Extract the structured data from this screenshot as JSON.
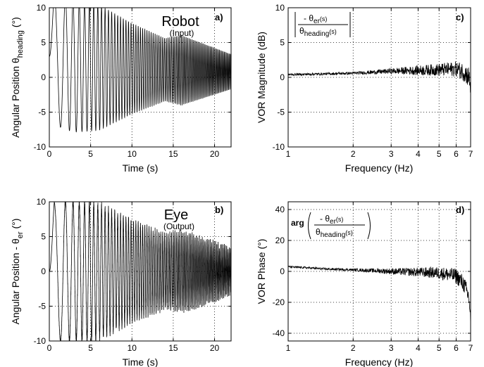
{
  "chart_data": [
    {
      "panel": "a)",
      "type": "line",
      "title": "Robot",
      "subtitle": "(Input)",
      "xlabel": "Time (s)",
      "ylabel_main": "Angular Position θ",
      "ylabel_sub": "heading",
      "ylabel_unit": "(°)",
      "xlim": [
        0,
        22
      ],
      "ylim": [
        -10,
        10
      ],
      "xticks": [
        "0",
        "5",
        "10",
        "15",
        "20"
      ],
      "yticks": [
        "-10",
        "-5",
        "0",
        "5",
        "10"
      ],
      "grid": true,
      "signal": {
        "kind": "chirp",
        "f_start_hz": 0.35,
        "f_end_hz": 7,
        "envelope": [
          [
            0,
            0
          ],
          [
            0.6,
            9.5
          ],
          [
            2,
            9.5
          ],
          [
            6,
            9
          ],
          [
            10,
            6.5
          ],
          [
            14,
            4.5
          ],
          [
            16,
            5
          ],
          [
            22,
            2.5
          ]
        ],
        "offset": 1,
        "offset_decay": [
          [
            0,
            3
          ],
          [
            3,
            1.5
          ],
          [
            22,
            0.8
          ]
        ]
      }
    },
    {
      "panel": "b)",
      "type": "line",
      "title": "Eye",
      "subtitle": "(Output)",
      "xlabel": "Time (s)",
      "ylabel_main": "Angular Position  - θ",
      "ylabel_sub": "er",
      "ylabel_unit": "(°)",
      "xlim": [
        0,
        22
      ],
      "ylim": [
        -10,
        10
      ],
      "xticks": [
        "0",
        "5",
        "10",
        "15",
        "20"
      ],
      "yticks": [
        "-10",
        "-5",
        "0",
        "5",
        "10"
      ],
      "grid": true,
      "signal": {
        "kind": "chirp",
        "f_start_hz": 0.35,
        "f_end_hz": 7,
        "envelope": [
          [
            0,
            0
          ],
          [
            0.6,
            10
          ],
          [
            2,
            10
          ],
          [
            6,
            9.5
          ],
          [
            10,
            7
          ],
          [
            14,
            5
          ],
          [
            16,
            5.5
          ],
          [
            22,
            3
          ]
        ],
        "offset": 0,
        "noise": 0.7
      }
    },
    {
      "panel": "c)",
      "type": "line",
      "ylabel": "VOR Magnitude (dB)",
      "xlabel": "Frequency (Hz)",
      "xscale": "log",
      "xlim": [
        1,
        7
      ],
      "ylim": [
        -10,
        10
      ],
      "xticks": [
        "1",
        "2",
        "3",
        "4",
        "5",
        "6",
        "7"
      ],
      "yticks": [
        "-10",
        "-5",
        "0",
        "5",
        "10"
      ],
      "grid": true,
      "annotation": "| - θer(s) / θheading(s) |",
      "annotation_parts": {
        "num": "- θ",
        "num_sub": "er",
        "num_s": "(s)",
        "den": "θ",
        "den_sub": "heading",
        "den_s": "(s)"
      },
      "trend": [
        [
          1,
          0.4
        ],
        [
          1.5,
          0.5
        ],
        [
          2,
          0.6
        ],
        [
          3,
          0.9
        ],
        [
          4,
          1
        ],
        [
          5,
          1.1
        ],
        [
          6,
          1.2
        ],
        [
          6.5,
          0.8
        ],
        [
          7,
          -0.2
        ]
      ],
      "noise_amp": [
        [
          1,
          0.15
        ],
        [
          2,
          0.2
        ],
        [
          3,
          0.4
        ],
        [
          4,
          0.7
        ],
        [
          5,
          0.9
        ],
        [
          6,
          1.1
        ],
        [
          7,
          1.6
        ]
      ],
      "end_dip": -1.5
    },
    {
      "panel": "d)",
      "type": "line",
      "ylabel": "VOR Phase (°)",
      "xlabel": "Frequency (Hz)",
      "xscale": "log",
      "xlim": [
        1,
        7
      ],
      "ylim": [
        -45,
        45
      ],
      "xticks": [
        "1",
        "2",
        "3",
        "4",
        "5",
        "6",
        "7"
      ],
      "yticks": [
        "-40",
        "-20",
        "0",
        "20",
        "40"
      ],
      "grid": true,
      "annotation_prefix": "arg",
      "annotation_parts": {
        "num": "- θ",
        "num_sub": "er",
        "num_s": "(s)",
        "den": "θ",
        "den_sub": "heading",
        "den_s": "(s)"
      },
      "trend": [
        [
          1,
          3
        ],
        [
          1.5,
          1.5
        ],
        [
          2,
          1
        ],
        [
          3,
          0
        ],
        [
          4,
          -0.5
        ],
        [
          5,
          -1
        ],
        [
          6,
          -3
        ],
        [
          6.5,
          -8
        ],
        [
          7,
          -20
        ]
      ],
      "noise_amp": [
        [
          1,
          0.6
        ],
        [
          2,
          0.8
        ],
        [
          3,
          2
        ],
        [
          4,
          3
        ],
        [
          5,
          4
        ],
        [
          6,
          5
        ],
        [
          7,
          6
        ]
      ],
      "end_dip": -12
    }
  ]
}
